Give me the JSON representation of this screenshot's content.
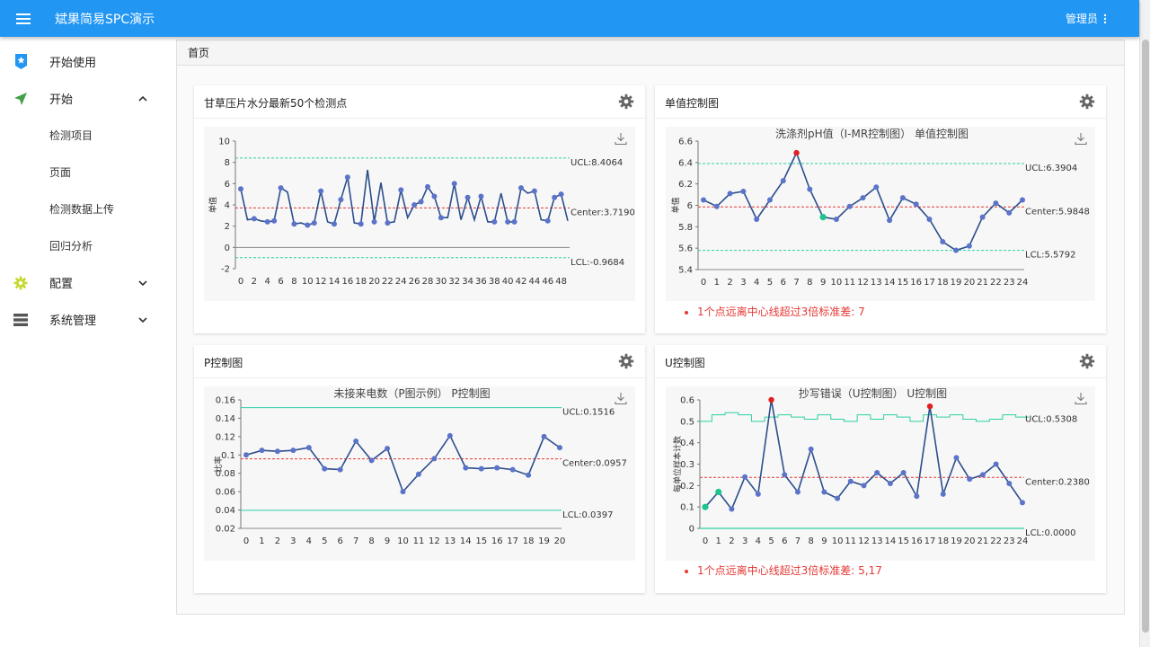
{
  "app": {
    "title": "斌果简易SPC演示",
    "user": "管理员"
  },
  "sidebar": {
    "items": [
      {
        "label": "开始使用",
        "icon": "star-badge-icon"
      },
      {
        "label": "开始",
        "icon": "send-arrow-icon",
        "expanded": true
      },
      {
        "label": "配置",
        "icon": "gear-icon",
        "expanded": false
      },
      {
        "label": "系统管理",
        "icon": "list-icon",
        "expanded": false
      }
    ],
    "subitems": [
      "检测项目",
      "页面",
      "检测数据上传",
      "回归分析"
    ]
  },
  "breadcrumb": "首页",
  "colors": {
    "topbar": "#2196f3",
    "line": "#2c4f8c",
    "point": "#5b73c8",
    "ucl": "#2bd1a4",
    "center": "#e53935",
    "out_point": "#e02020",
    "green_point": "#1dc48f"
  },
  "cards": [
    {
      "title": "甘草压片水分最新50个检测点"
    },
    {
      "title": "单值控制图",
      "warning": "1个点远离中心线超过3倍标准差: 7"
    },
    {
      "title": "P控制图"
    },
    {
      "title": "U控制图",
      "warning": "1个点远离中心线超过3倍标准差: 5,17"
    }
  ],
  "chart_data": [
    {
      "type": "line",
      "title": "",
      "ylabel": "单值",
      "ylim": [
        -2,
        10
      ],
      "yticks": [
        -2,
        0,
        2,
        4,
        6,
        8,
        10
      ],
      "xticks": [
        0,
        2,
        4,
        6,
        8,
        10,
        12,
        14,
        16,
        18,
        20,
        22,
        24,
        26,
        28,
        30,
        32,
        34,
        36,
        38,
        40,
        42,
        44,
        46,
        48
      ],
      "x": [
        0,
        1,
        2,
        3,
        4,
        5,
        6,
        7,
        8,
        9,
        10,
        11,
        12,
        13,
        14,
        15,
        16,
        17,
        18,
        19,
        20,
        21,
        22,
        23,
        24,
        25,
        26,
        27,
        28,
        29,
        30,
        31,
        32,
        33,
        34,
        35,
        36,
        37,
        38,
        39,
        40,
        41,
        42,
        43,
        44,
        45,
        46,
        47,
        48,
        49
      ],
      "values": [
        5.5,
        2.6,
        2.7,
        2.5,
        2.4,
        2.5,
        5.6,
        5.2,
        2.2,
        2.3,
        2.1,
        2.3,
        5.3,
        2.4,
        2.2,
        4.5,
        6.6,
        2.3,
        2.2,
        7.3,
        2.4,
        6.1,
        2.3,
        2.4,
        5.4,
        2.8,
        4.0,
        4.3,
        5.7,
        4.8,
        2.8,
        2.8,
        6.0,
        2.6,
        4.7,
        2.6,
        4.8,
        2.4,
        2.4,
        5.1,
        2.4,
        2.4,
        5.6,
        5.1,
        5.3,
        2.6,
        2.5,
        4.7,
        5.0,
        2.5
      ],
      "limits": {
        "ucl": 8.4064,
        "center": 3.719,
        "lcl": -0.9684
      },
      "labels": {
        "ucl": "UCL:8.4064",
        "center": "Center:3.7190",
        "lcl": "LCL:-0.9684"
      }
    },
    {
      "type": "line",
      "title": "洗涤剂pH值（I-MR控制图） 单值控制图",
      "ylabel": "单值",
      "ylim": [
        5.4,
        6.6
      ],
      "yticks": [
        5.4,
        5.6,
        5.8,
        6,
        6.2,
        6.4,
        6.6
      ],
      "x": [
        0,
        1,
        2,
        3,
        4,
        5,
        6,
        7,
        8,
        9,
        10,
        11,
        12,
        13,
        14,
        15,
        16,
        17,
        18,
        19,
        20,
        21,
        22,
        23,
        24
      ],
      "values": [
        6.05,
        5.99,
        6.11,
        6.13,
        5.87,
        6.05,
        6.23,
        6.49,
        6.15,
        5.89,
        5.87,
        5.99,
        6.07,
        6.17,
        5.86,
        6.07,
        6.01,
        5.87,
        5.66,
        5.58,
        5.62,
        5.89,
        6.02,
        5.93,
        6.05
      ],
      "limits": {
        "ucl": 6.3904,
        "center": 5.9848,
        "lcl": 5.5792
      },
      "labels": {
        "ucl": "UCL:6.3904",
        "center": "Center:5.9848",
        "lcl": "LCL:5.5792"
      },
      "out_of_control": [
        7
      ],
      "highlight": [
        9
      ]
    },
    {
      "type": "line",
      "title": "未接来电数（P图示例） P控制图",
      "ylabel": "比率",
      "ylim": [
        0.02,
        0.16
      ],
      "yticks": [
        0.02,
        0.04,
        0.06,
        0.08,
        0.1,
        0.12,
        0.14,
        0.16
      ],
      "x": [
        0,
        1,
        2,
        3,
        4,
        5,
        6,
        7,
        8,
        9,
        10,
        11,
        12,
        13,
        14,
        15,
        16,
        17,
        18,
        19,
        20
      ],
      "values": [
        0.1,
        0.105,
        0.104,
        0.105,
        0.108,
        0.085,
        0.084,
        0.115,
        0.094,
        0.107,
        0.06,
        0.079,
        0.096,
        0.121,
        0.086,
        0.085,
        0.086,
        0.084,
        0.078,
        0.12,
        0.108
      ],
      "limits": {
        "ucl": 0.1516,
        "center": 0.0957,
        "lcl": 0.0397
      },
      "labels": {
        "ucl": "UCL:0.1516",
        "center": "Center:0.0957",
        "lcl": "LCL:0.0397"
      }
    },
    {
      "type": "line",
      "title": "抄写错误（U控制图） U控制图",
      "ylabel": "每单位样本计数",
      "ylim": [
        0,
        0.6
      ],
      "yticks": [
        0,
        0.1,
        0.2,
        0.3,
        0.4,
        0.5,
        0.6
      ],
      "x": [
        0,
        1,
        2,
        3,
        4,
        5,
        6,
        7,
        8,
        9,
        10,
        11,
        12,
        13,
        14,
        15,
        16,
        17,
        18,
        19,
        20,
        21,
        22,
        23,
        24
      ],
      "values": [
        0.1,
        0.17,
        0.09,
        0.24,
        0.16,
        0.6,
        0.25,
        0.17,
        0.37,
        0.17,
        0.14,
        0.22,
        0.2,
        0.26,
        0.21,
        0.26,
        0.15,
        0.57,
        0.16,
        0.33,
        0.23,
        0.25,
        0.3,
        0.21,
        0.12
      ],
      "ucl_steps": [
        0.5,
        0.53,
        0.54,
        0.53,
        0.5,
        0.52,
        0.53,
        0.52,
        0.51,
        0.53,
        0.51,
        0.5,
        0.53,
        0.51,
        0.53,
        0.52,
        0.5,
        0.53,
        0.52,
        0.53,
        0.51,
        0.5,
        0.51,
        0.53,
        0.52
      ],
      "limits": {
        "ucl": 0.5308,
        "center": 0.238,
        "lcl": 0
      },
      "labels": {
        "ucl": "UCL:0.5308",
        "center": "Center:0.2380",
        "lcl": "LCL:0.0000"
      },
      "out_of_control": [
        5,
        17
      ],
      "highlight": [
        0,
        1
      ]
    }
  ]
}
